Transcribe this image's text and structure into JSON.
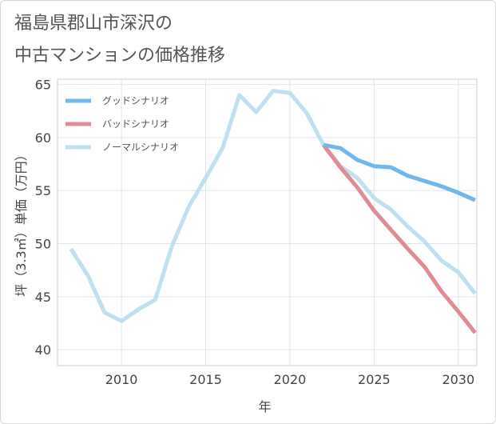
{
  "chart_data": {
    "type": "line",
    "title_lines": [
      "福島県郡山市深沢の",
      "中古マンションの価格推移"
    ],
    "xlabel": "年",
    "ylabel": "坪（3.3㎡）単価（万円）",
    "xlim": [
      2006.2,
      2031.1
    ],
    "ylim": [
      38.5,
      65.5
    ],
    "x_ticks": [
      2010,
      2015,
      2020,
      2025,
      2030
    ],
    "y_ticks": [
      40,
      45,
      50,
      55,
      60,
      65
    ],
    "grid": true,
    "legend_position": "top-left",
    "series": [
      {
        "name": "グッドシナリオ",
        "color": "#6db9ec",
        "x": [
          2022,
          2023,
          2024,
          2025,
          2026,
          2027,
          2028,
          2029,
          2030,
          2031
        ],
        "y": [
          59.3,
          59.0,
          57.9,
          57.3,
          57.2,
          56.4,
          55.9,
          55.4,
          54.8,
          54.1
        ]
      },
      {
        "name": "バッドシナリオ",
        "color": "#df8c96",
        "x": [
          2022,
          2023,
          2024,
          2025,
          2026,
          2027,
          2028,
          2029,
          2030,
          2031
        ],
        "y": [
          59.3,
          57.2,
          55.3,
          53.1,
          51.3,
          49.5,
          47.8,
          45.5,
          43.6,
          41.6
        ]
      },
      {
        "name": "ノーマルシナリオ",
        "color": "#bfe0ee",
        "x": [
          2007,
          2008,
          2009,
          2010,
          2011,
          2012,
          2013,
          2014,
          2015,
          2016,
          2017,
          2018,
          2019,
          2020,
          2021,
          2022,
          2023,
          2024,
          2025,
          2026,
          2027,
          2028,
          2029,
          2030,
          2031
        ],
        "y": [
          49.5,
          47.0,
          43.5,
          42.7,
          43.8,
          44.7,
          49.8,
          53.5,
          56.2,
          59.0,
          64.0,
          62.4,
          64.4,
          64.2,
          62.3,
          59.3,
          57.3,
          56.2,
          54.3,
          53.2,
          51.6,
          50.2,
          48.4,
          47.3,
          45.3
        ]
      }
    ]
  }
}
